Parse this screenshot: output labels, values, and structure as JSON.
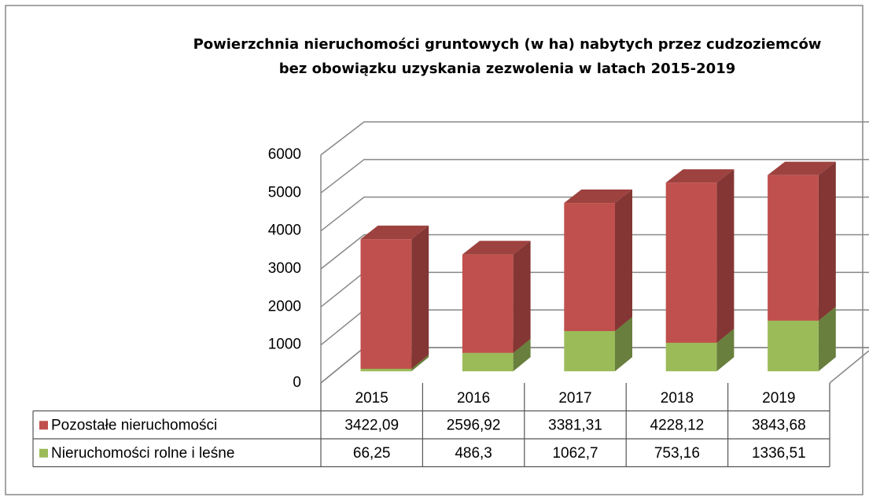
{
  "chart_data": {
    "type": "bar3d_stacked",
    "title": [
      "Powierzchnia nieruchomości gruntowych (w ha) nabytych przez cudzoziemców",
      "bez obowiązku uzyskania zezwolenia w latach 2015-2019"
    ],
    "categories": [
      "2015",
      "2016",
      "2017",
      "2018",
      "2019"
    ],
    "series": [
      {
        "name": "Pozostałe nieruchomości",
        "color": "#c0504d",
        "values": [
          3422.09,
          2596.92,
          3381.31,
          4228.12,
          3843.68
        ],
        "value_labels": [
          "3422,09",
          "2596,92",
          "3381,31",
          "4228,12",
          "3843,68"
        ]
      },
      {
        "name": "Nieruchomości rolne i leśne",
        "color": "#9bbb59",
        "values": [
          66.25,
          486.3,
          1062.7,
          753.16,
          1336.51
        ],
        "value_labels": [
          "66,25",
          "486,3",
          "1062,7",
          "753,16",
          "1336,51"
        ]
      }
    ],
    "ylim": [
      0,
      6000
    ],
    "yticks": [
      0,
      1000,
      2000,
      3000,
      4000,
      5000,
      6000
    ],
    "grid": true
  }
}
